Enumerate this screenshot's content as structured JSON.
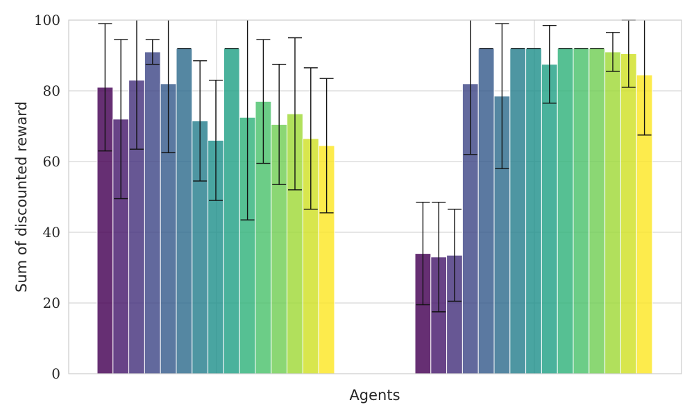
{
  "chart_data": {
    "type": "bar",
    "xlabel": "Agents",
    "ylabel": "Sum of discounted reward",
    "ylim": [
      0,
      100
    ],
    "yticks": [
      0,
      20,
      40,
      60,
      80,
      100
    ],
    "grid": true,
    "palette": [
      "#440154",
      "#482475",
      "#414487",
      "#355f8d",
      "#2a788e",
      "#21918c",
      "#22a884",
      "#44bf70",
      "#7ad151",
      "#bddf26",
      "#fde725"
    ],
    "groups": [
      {
        "bars": [
          {
            "value": 81,
            "err": 18
          },
          {
            "value": 72,
            "err": 22.5
          },
          {
            "value": 83,
            "err": 19.5
          },
          {
            "value": 91,
            "err": 3.5
          },
          {
            "value": 82,
            "err": 19.5
          },
          {
            "value": 92,
            "err": 0
          },
          {
            "value": 71.5,
            "err": 17
          },
          {
            "value": 66,
            "err": 17
          },
          {
            "value": 92,
            "err": 0
          },
          {
            "value": 72.5,
            "err": 29
          },
          {
            "value": 77,
            "err": 17.5
          },
          {
            "value": 70.5,
            "err": 17
          },
          {
            "value": 73.5,
            "err": 21.5
          },
          {
            "value": 66.5,
            "err": 20
          },
          {
            "value": 64.5,
            "err": 19
          }
        ]
      },
      {
        "bars": [
          {
            "value": 34,
            "err": 14.5
          },
          {
            "value": 33,
            "err": 15.5
          },
          {
            "value": 33.5,
            "err": 13
          },
          {
            "value": 82,
            "err": 20
          },
          {
            "value": 92,
            "err": 0
          },
          {
            "value": 78.5,
            "err": 20.5
          },
          {
            "value": 92,
            "err": 0
          },
          {
            "value": 92,
            "err": 0
          },
          {
            "value": 87.5,
            "err": 11
          },
          {
            "value": 92,
            "err": 0
          },
          {
            "value": 92,
            "err": 0
          },
          {
            "value": 92,
            "err": 0
          },
          {
            "value": 91,
            "err": 5.5
          },
          {
            "value": 90.5,
            "err": 9.5
          },
          {
            "value": 84.5,
            "err": 17
          }
        ]
      }
    ]
  }
}
